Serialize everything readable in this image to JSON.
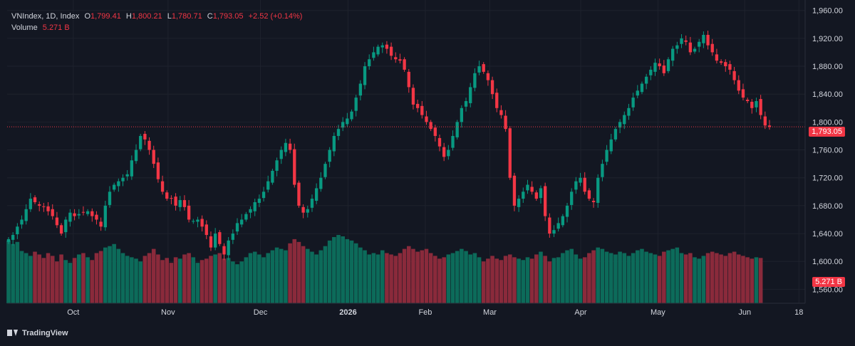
{
  "legend": {
    "symbol": "VNIndex, 1D, Index",
    "open_label": "O",
    "open": "1,799.41",
    "high_label": "H",
    "high": "1,800.21",
    "low_label": "L",
    "low": "1,780.71",
    "close_label": "C",
    "close": "1,793.05",
    "change": "+2.52 (+0.14%)",
    "volume_label": "Volume",
    "volume": "5.271 B"
  },
  "price_tag": "1,793.05",
  "volume_tag": "5.271 B",
  "branding": "TradingView",
  "colors": {
    "background": "#131722",
    "up": "#089981",
    "down": "#f23645",
    "up_volume": "#0c6b5a",
    "down_volume": "#8a2a3b",
    "grid": "#1e222d",
    "text": "#d1d4dc"
  },
  "chart_data": {
    "type": "candlestick",
    "y_axis": {
      "ticks": [
        1560,
        1600,
        1640,
        1680,
        1720,
        1760,
        1800,
        1840,
        1880,
        1920,
        1960
      ],
      "tick_labels": [
        "1,560.00",
        "1,600.00",
        "1,640.00",
        "1,680.00",
        "1,720.00",
        "1,760.00",
        "1,800.00",
        "1,840.00",
        "1,880.00",
        "1,920.00",
        "1,960.00"
      ],
      "range": [
        1540,
        1975
      ]
    },
    "x_axis": {
      "labels": [
        "Oct",
        "Nov",
        "Dec",
        "2026",
        "Feb",
        "Mar",
        "Apr",
        "May",
        "Jun",
        "18"
      ],
      "bold": [
        "2026"
      ]
    },
    "last_price": 1793.05,
    "close_series": [
      1632,
      1638,
      1650,
      1660,
      1675,
      1690,
      1685,
      1680,
      1678,
      1672,
      1665,
      1652,
      1640,
      1660,
      1670,
      1665,
      1668,
      1670,
      1672,
      1665,
      1660,
      1650,
      1680,
      1700,
      1710,
      1715,
      1720,
      1725,
      1745,
      1760,
      1780,
      1775,
      1760,
      1740,
      1718,
      1700,
      1690,
      1690,
      1680,
      1688,
      1678,
      1660,
      1658,
      1660,
      1650,
      1638,
      1620,
      1640,
      1625,
      1610,
      1630,
      1640,
      1655,
      1660,
      1668,
      1675,
      1685,
      1690,
      1700,
      1715,
      1730,
      1745,
      1760,
      1770,
      1760,
      1710,
      1680,
      1670,
      1675,
      1690,
      1705,
      1720,
      1740,
      1760,
      1780,
      1790,
      1800,
      1805,
      1815,
      1835,
      1855,
      1880,
      1890,
      1900,
      1908,
      1910,
      1905,
      1895,
      1890,
      1888,
      1875,
      1850,
      1825,
      1820,
      1810,
      1800,
      1790,
      1780,
      1765,
      1750,
      1760,
      1780,
      1800,
      1820,
      1830,
      1850,
      1870,
      1880,
      1872,
      1860,
      1840,
      1820,
      1810,
      1790,
      1720,
      1680,
      1690,
      1700,
      1710,
      1700,
      1690,
      1705,
      1665,
      1640,
      1645,
      1655,
      1665,
      1680,
      1700,
      1715,
      1720,
      1700,
      1690,
      1685,
      1720,
      1740,
      1760,
      1775,
      1790,
      1800,
      1810,
      1820,
      1835,
      1845,
      1855,
      1865,
      1875,
      1885,
      1880,
      1870,
      1890,
      1905,
      1910,
      1920,
      1915,
      1900,
      1905,
      1915,
      1925,
      1910,
      1900,
      1888,
      1885,
      1880,
      1875,
      1860,
      1845,
      1835,
      1830,
      1820,
      1830,
      1810,
      1795,
      1793.05
    ],
    "volume_series": [
      1630,
      1625,
      1628,
      1615,
      1612,
      1608,
      1614,
      1610,
      1605,
      1612,
      1608,
      1600,
      1610,
      1602,
      1598,
      1605,
      1610,
      1612,
      1606,
      1602,
      1612,
      1615,
      1620,
      1622,
      1625,
      1618,
      1612,
      1608,
      1606,
      1604,
      1600,
      1608,
      1612,
      1618,
      1610,
      1602,
      1605,
      1598,
      1606,
      1604,
      1610,
      1612,
      1606,
      1598,
      1602,
      1604,
      1608,
      1610,
      1612,
      1604,
      1605,
      1600,
      1596,
      1600,
      1606,
      1612,
      1614,
      1610,
      1606,
      1612,
      1616,
      1620,
      1618,
      1616,
      1626,
      1632,
      1628,
      1622,
      1618,
      1614,
      1610,
      1616,
      1622,
      1630,
      1635,
      1638,
      1636,
      1632,
      1630,
      1626,
      1620,
      1616,
      1610,
      1612,
      1610,
      1616,
      1612,
      1610,
      1608,
      1612,
      1618,
      1622,
      1618,
      1614,
      1616,
      1618,
      1612,
      1608,
      1604,
      1606,
      1610,
      1612,
      1615,
      1618,
      1615,
      1610,
      1612,
      1606,
      1600,
      1604,
      1608,
      1604,
      1602,
      1608,
      1610,
      1606,
      1604,
      1602,
      1606,
      1604,
      1610,
      1614,
      1608,
      1600,
      1605,
      1606,
      1612,
      1616,
      1618,
      1610,
      1604,
      1606,
      1612,
      1616,
      1620,
      1618,
      1614,
      1612,
      1610,
      1614,
      1612,
      1608,
      1612,
      1616,
      1618,
      1614,
      1612,
      1610,
      1608,
      1614,
      1616,
      1618,
      1620,
      1612,
      1610,
      1612,
      1606,
      1604,
      1608,
      1612,
      1614,
      1612,
      1610,
      1608,
      1612,
      1614,
      1610,
      1608,
      1606,
      1604,
      1606,
      1605
    ]
  }
}
